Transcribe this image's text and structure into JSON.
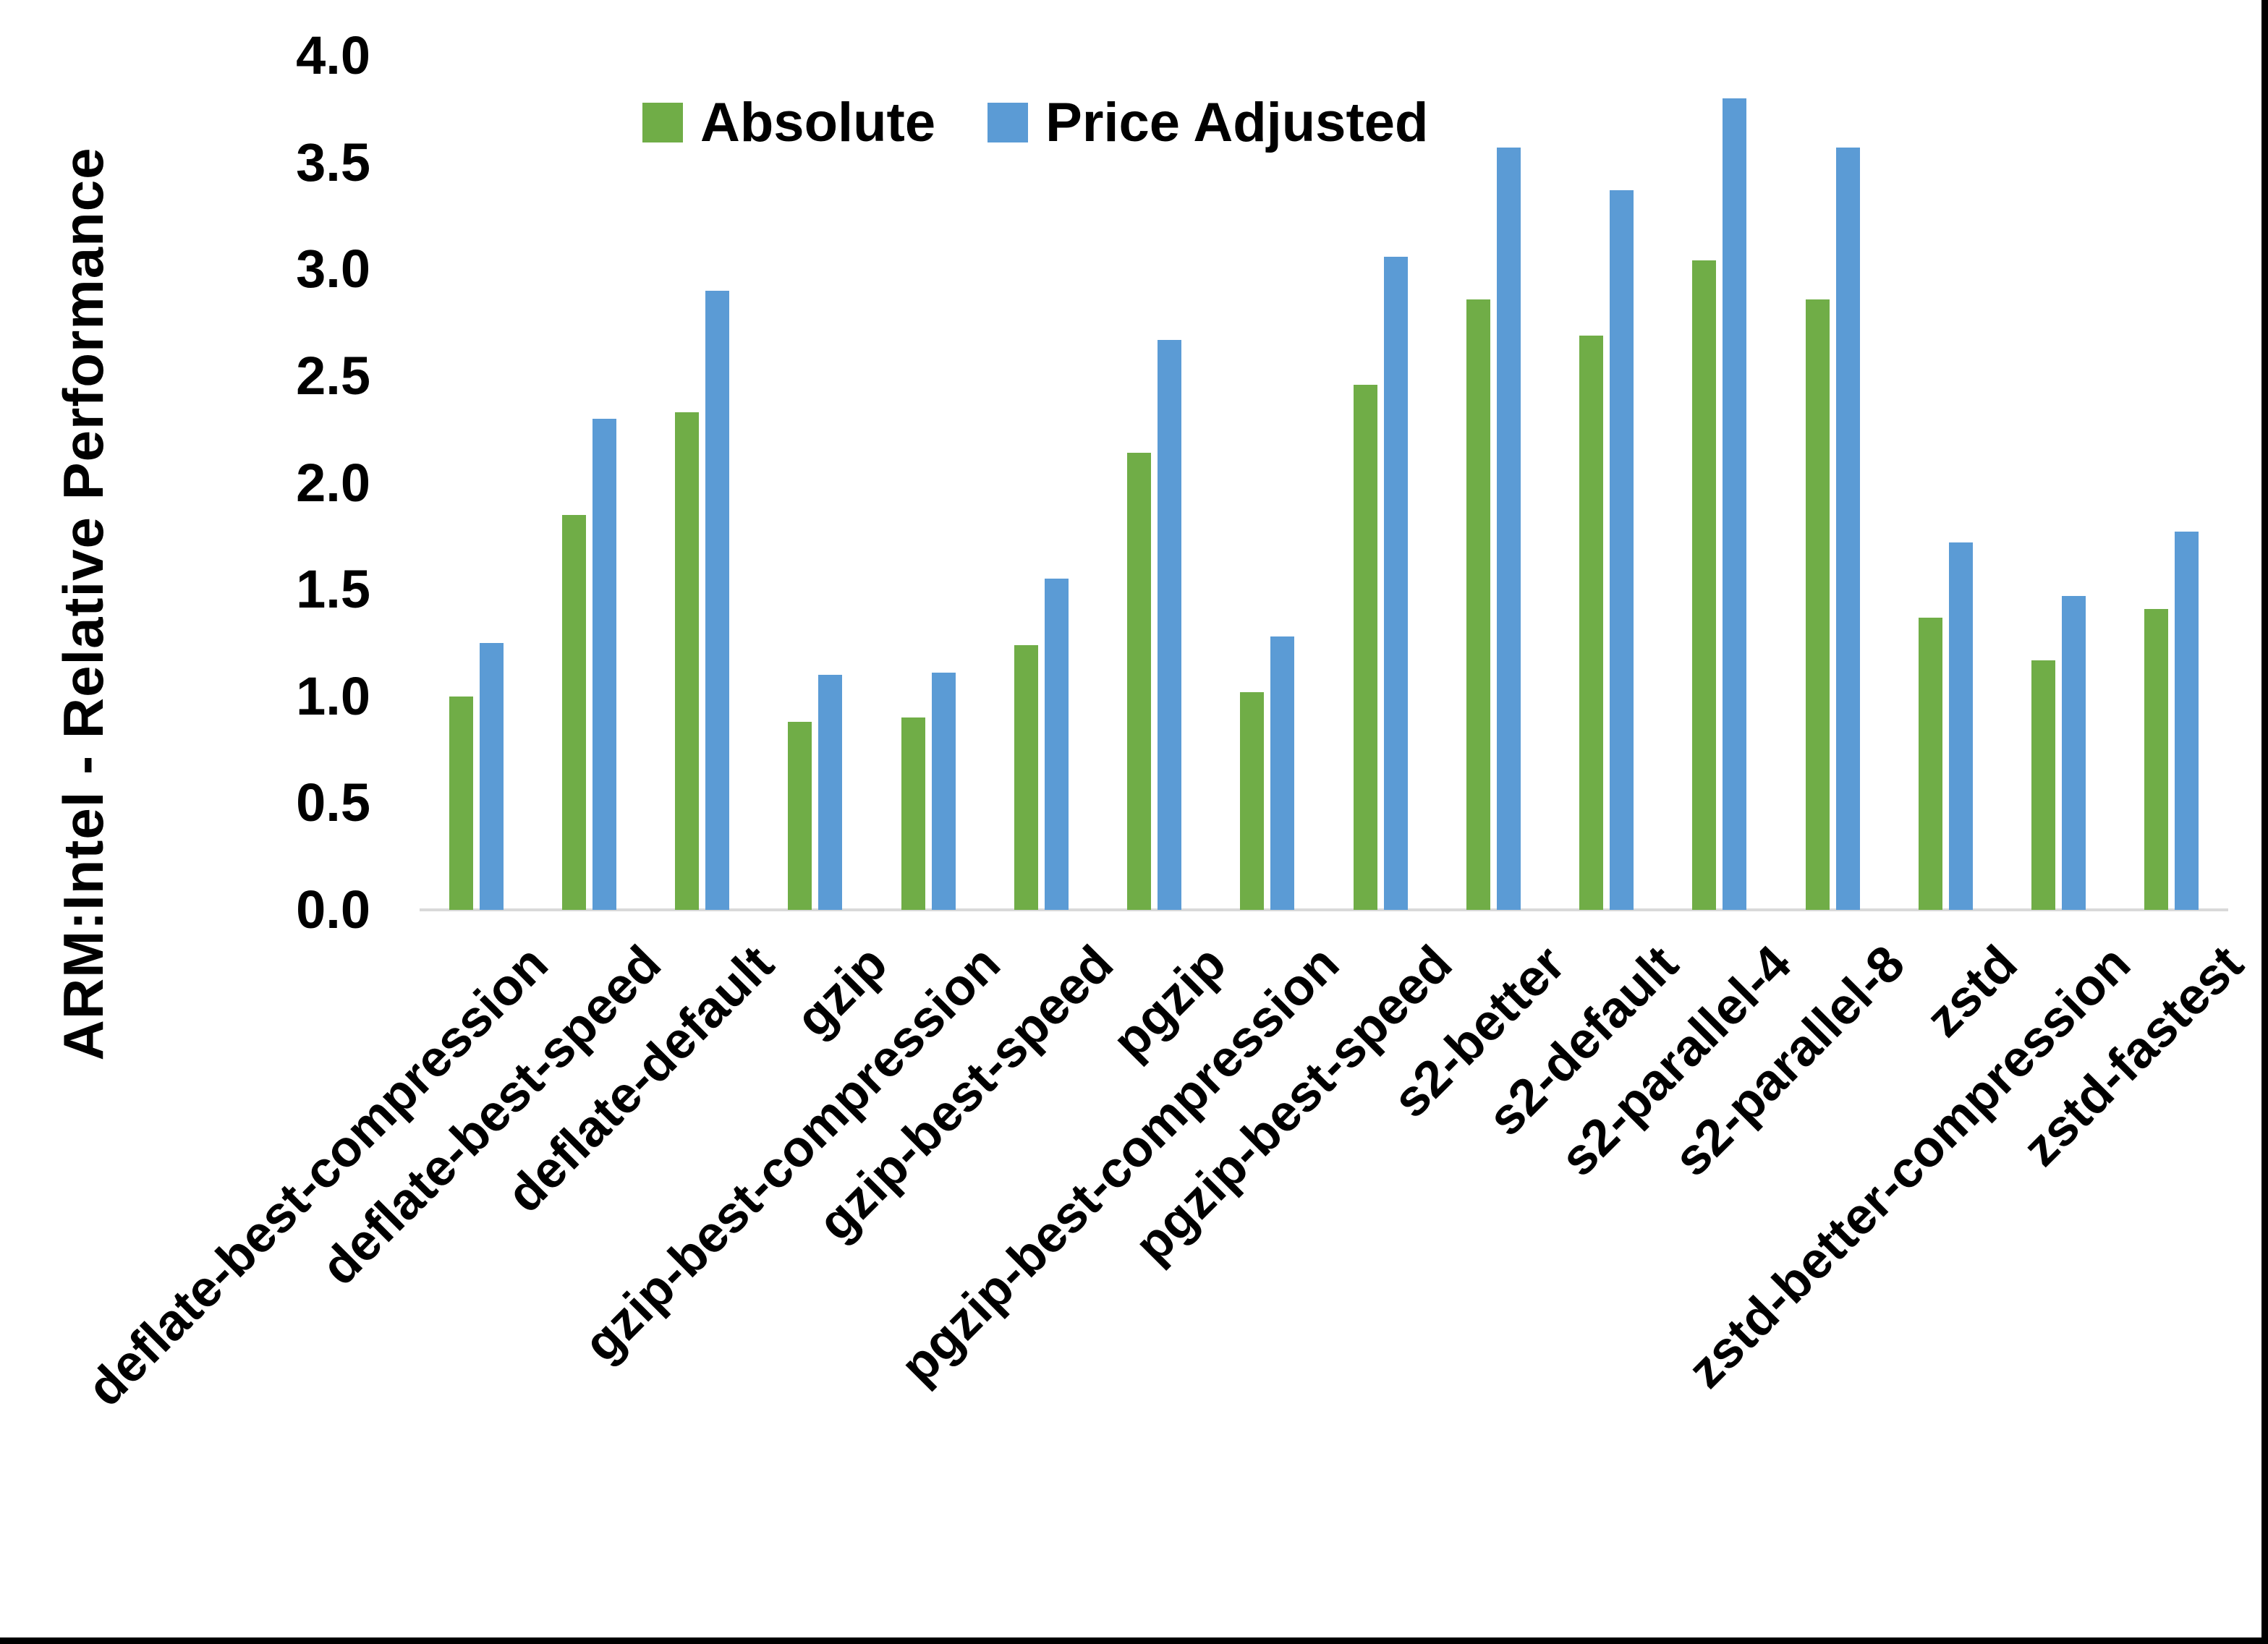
{
  "chart_data": {
    "type": "bar",
    "title": "",
    "ylabel": "ARM:Intel - Relative Performance",
    "xlabel": "",
    "ylim": [
      0.0,
      4.0
    ],
    "yticks": [
      "0.0",
      "0.5",
      "1.0",
      "1.5",
      "2.0",
      "2.5",
      "3.0",
      "3.5",
      "4.0"
    ],
    "grid": false,
    "legend_position": "top-center",
    "categories": [
      "deflate-best-compression",
      "deflate-best-speed",
      "deflate-default",
      "gzip",
      "gzip-best-compression",
      "gzip-best-speed",
      "pgzip",
      "pgzip-best-compression",
      "pgzip-best-speed",
      "s2-better",
      "s2-default",
      "s2-parallel-4",
      "s2-parallel-8",
      "zstd",
      "zstd-better-compression",
      "zstd-fastest"
    ],
    "series": [
      {
        "name": "Absolute",
        "color": "#70AD47",
        "values": [
          1.0,
          1.85,
          2.33,
          0.88,
          0.9,
          1.24,
          2.14,
          1.02,
          2.46,
          2.86,
          2.69,
          3.04,
          2.86,
          1.37,
          1.17,
          1.41
        ]
      },
      {
        "name": "Price Adjusted",
        "color": "#5B9BD5",
        "values": [
          1.25,
          2.3,
          2.9,
          1.1,
          1.11,
          1.55,
          2.67,
          1.28,
          3.06,
          3.57,
          3.37,
          3.8,
          3.57,
          1.72,
          1.47,
          1.77
        ]
      }
    ],
    "axis_line_color": "#D9D9D9",
    "text_color": "#000000"
  }
}
